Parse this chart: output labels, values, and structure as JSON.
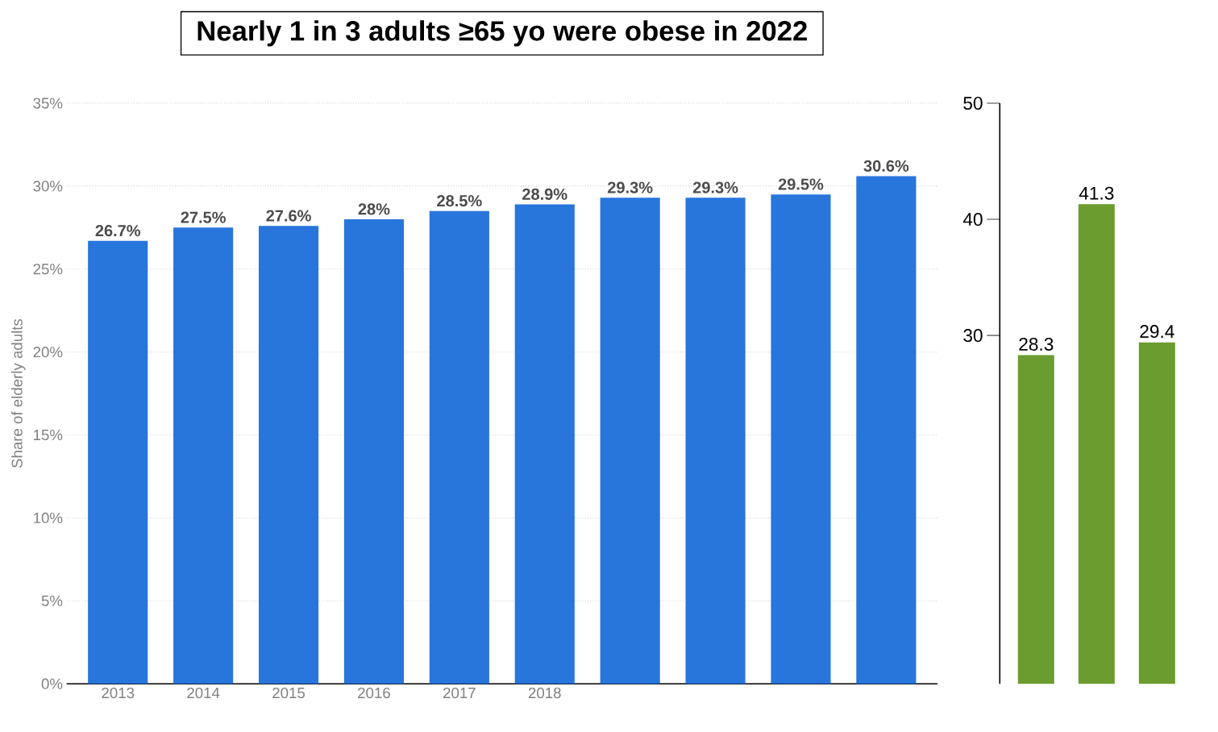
{
  "chart_data": [
    {
      "type": "bar",
      "ylabel": "Share of elderly adults",
      "categories": [
        "2013",
        "2014",
        "2015",
        "2016",
        "2017",
        "2018",
        null,
        null,
        null,
        null
      ],
      "values": [
        26.7,
        27.5,
        27.6,
        28,
        28.5,
        28.9,
        29.3,
        29.3,
        29.5,
        30.6
      ],
      "value_labels": [
        "26.7%",
        "27.5%",
        "27.6%",
        "28%",
        "28.5%",
        "28.9%",
        "29.3%",
        "29.3%",
        "29.5%",
        "30.6%"
      ],
      "color": "#2875dc",
      "ylim": [
        0,
        35
      ],
      "yticks": [
        {
          "value": 0,
          "label": "0%"
        },
        {
          "value": 5,
          "label": "5%"
        },
        {
          "value": 10,
          "label": "10%"
        },
        {
          "value": 15,
          "label": "15%"
        },
        {
          "value": 20,
          "label": "20%"
        },
        {
          "value": 25,
          "label": "25%"
        },
        {
          "value": 30,
          "label": "30%"
        },
        {
          "value": 35,
          "label": "35%"
        }
      ],
      "grid": "y",
      "annotations": [
        "Nearly 1 in 3 adults ≥65 yo were obese in 2022"
      ]
    },
    {
      "type": "bar",
      "categories": [
        null,
        null,
        null
      ],
      "values": [
        28.3,
        41.3,
        29.4
      ],
      "colors": [
        "#6b9c2f",
        "#6b9c2f",
        "#6b9c2f"
      ],
      "data_labels": true,
      "ylim": [
        0,
        50
      ],
      "yticks": [
        30,
        40,
        50
      ],
      "tick_labels": "y"
    }
  ]
}
